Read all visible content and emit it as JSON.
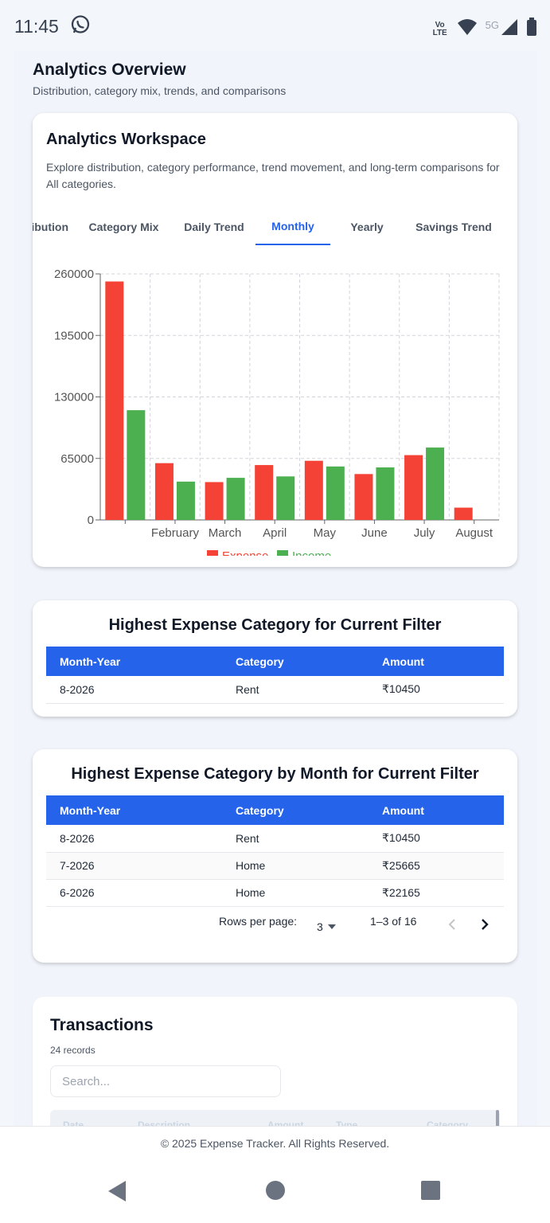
{
  "status_bar": {
    "time": "11:45",
    "volte": "Vo LTE",
    "network": "5G"
  },
  "page": {
    "title": "Analytics Overview",
    "subtitle": "Distribution, category mix, trends, and comparisons"
  },
  "workspace": {
    "title": "Analytics Workspace",
    "description": "Explore distribution, category performance, trend movement, and long-term comparisons for All categories.",
    "tabs": [
      {
        "label": "Distribution",
        "active": false
      },
      {
        "label": "Category Mix",
        "active": false
      },
      {
        "label": "Daily Trend",
        "active": false
      },
      {
        "label": "Monthly",
        "active": true
      },
      {
        "label": "Yearly",
        "active": false
      },
      {
        "label": "Savings Trend",
        "active": false
      }
    ]
  },
  "chart_data": {
    "type": "bar",
    "categories": [
      "",
      "February",
      "March",
      "April",
      "May",
      "June",
      "July",
      "August"
    ],
    "series": [
      {
        "name": "Expense",
        "color": "#f44336",
        "values": [
          252000,
          60000,
          40000,
          58000,
          62500,
          48500,
          68500,
          13000
        ]
      },
      {
        "name": "Income",
        "color": "#4caf50",
        "values": [
          116000,
          40500,
          44500,
          46000,
          56500,
          55500,
          76500,
          0
        ]
      }
    ],
    "yticks": [
      "0",
      "65000",
      "130000",
      "195000",
      "260000"
    ],
    "ylim": [
      0,
      260000
    ],
    "grid": true,
    "legend_position": "bottom"
  },
  "highest_current": {
    "title": "Highest Expense Category for Current Filter",
    "columns": [
      "Month-Year",
      "Category",
      "Amount"
    ],
    "rows": [
      {
        "month_year": "8-2026",
        "category": "Rent",
        "amount": "₹10450"
      }
    ]
  },
  "highest_by_month": {
    "title": "Highest Expense Category by Month for Current Filter",
    "columns": [
      "Month-Year",
      "Category",
      "Amount"
    ],
    "rows": [
      {
        "month_year": "8-2026",
        "category": "Rent",
        "amount": "₹10450"
      },
      {
        "month_year": "7-2026",
        "category": "Home",
        "amount": "₹25665"
      },
      {
        "month_year": "6-2026",
        "category": "Home",
        "amount": "₹22165"
      }
    ],
    "pagination": {
      "rows_per_page_label": "Rows per page:",
      "rows_per_page": "3",
      "range": "1–3 of 16"
    }
  },
  "transactions": {
    "title": "Transactions",
    "count": "24 records",
    "search_placeholder": "Search...",
    "columns": [
      "Date",
      "Description",
      "Amount",
      "Type",
      "Category"
    ]
  },
  "footer": {
    "text": "© 2025 Expense Tracker. All Rights Reserved."
  },
  "colors": {
    "accent": "#2563eb",
    "expense": "#f44336",
    "income": "#4caf50"
  }
}
